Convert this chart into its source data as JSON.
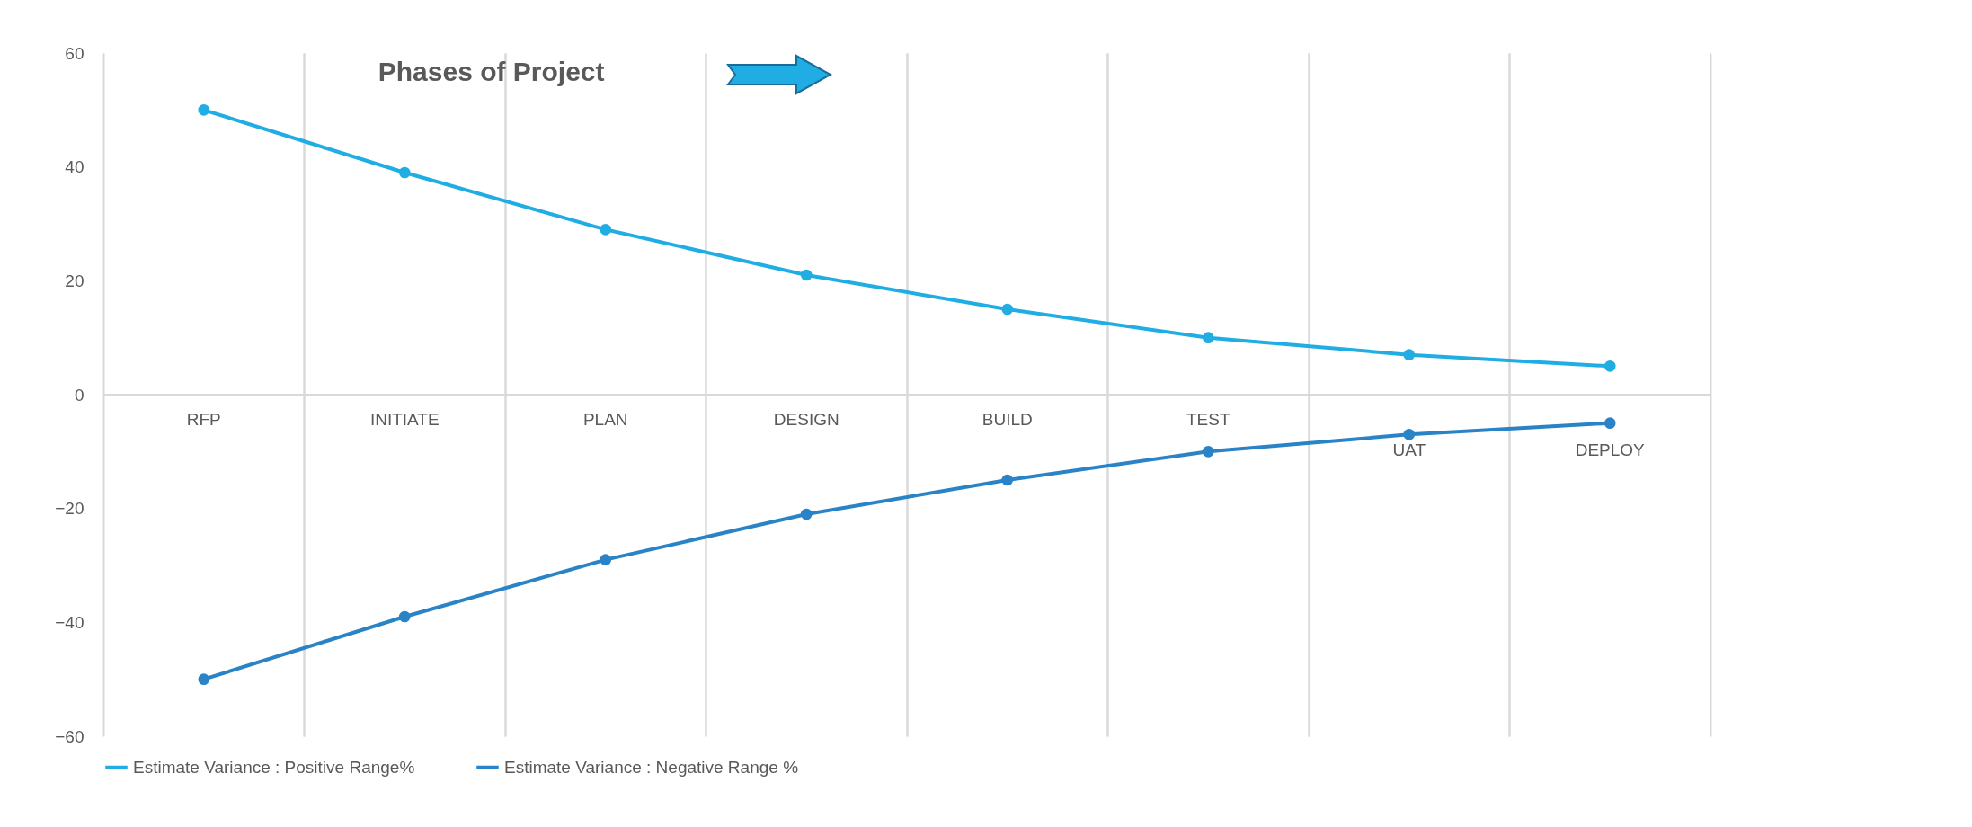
{
  "chart_data": {
    "type": "line",
    "title": "Phases of Project",
    "categories": [
      "RFP",
      "INITIATE",
      "PLAN",
      "DESIGN",
      "BUILD",
      "TEST",
      "UAT",
      "DEPLOY"
    ],
    "series": [
      {
        "name": "Estimate Variance : Positive Range%",
        "color": "#1fade4",
        "values": [
          50,
          39,
          29,
          21,
          15,
          10,
          7,
          5
        ]
      },
      {
        "name": "Estimate Variance : Negative Range %",
        "color": "#2a83c6",
        "values": [
          -50,
          -39,
          -29,
          -21,
          -15,
          -10,
          -7,
          -5
        ]
      }
    ],
    "ylim": [
      -60,
      60
    ],
    "yticks": [
      -60,
      -40,
      -20,
      0,
      20,
      40,
      60
    ],
    "grid": "x",
    "legend": "bottom",
    "marker": "circle"
  }
}
